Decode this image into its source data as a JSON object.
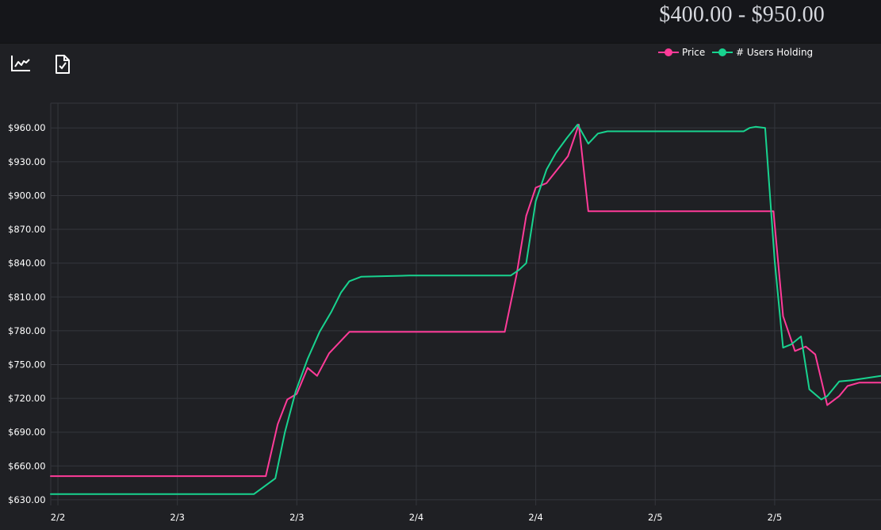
{
  "header": {
    "price_range": "$400.00 - $950.00"
  },
  "toolbar": [
    {
      "name": "chart-line-icon"
    },
    {
      "name": "document-check-icon"
    }
  ],
  "colors": {
    "price": "#ff3b99",
    "users": "#18d38f",
    "grid": "#34363c",
    "background": "#1f2024"
  },
  "chart_data": {
    "type": "line",
    "title": "",
    "xlabel": "",
    "ylabel": "",
    "ylim": [
      625,
      982
    ],
    "xlim": [
      0,
      69.5
    ],
    "grid": true,
    "legend_position": "top-right",
    "y_ticks": [
      "$630.00",
      "$660.00",
      "$690.00",
      "$720.00",
      "$750.00",
      "$780.00",
      "$810.00",
      "$840.00",
      "$870.00",
      "$900.00",
      "$930.00",
      "$960.00"
    ],
    "y_tick_values": [
      630,
      660,
      690,
      720,
      750,
      780,
      810,
      840,
      870,
      900,
      930,
      960
    ],
    "x_ticks": [
      "2/2",
      "2/3",
      "2/3",
      "2/4",
      "2/4",
      "2/5",
      "2/5"
    ],
    "x_tick_positions": [
      0.6,
      10.6,
      20.6,
      30.6,
      40.6,
      50.6,
      60.6
    ],
    "series": [
      {
        "name": "Price",
        "color": "#ff3b99",
        "x": [
          0,
          18,
          19,
          19.8,
          20.6,
          21.5,
          22.3,
          23.3,
          25,
          33,
          38,
          39,
          39.8,
          40.6,
          41.5,
          43.3,
          44.2,
          45,
          60.5,
          61.3,
          62.3,
          63.2,
          64,
          65,
          66,
          66.7,
          67.7,
          69.5
        ],
        "y": [
          651,
          651,
          697,
          719,
          724,
          747,
          740,
          760,
          779,
          779,
          779,
          830,
          882,
          907,
          911,
          935,
          963,
          886,
          886,
          793,
          762,
          766,
          759,
          714,
          722,
          731,
          734,
          734
        ]
      },
      {
        "name": "# Users Holding",
        "color": "#18d38f",
        "x": [
          0,
          17,
          18.8,
          19.6,
          20.5,
          21.5,
          22.5,
          23.5,
          24.3,
          25,
          26,
          30,
          37,
          38.5,
          39.2,
          39.8,
          40.6,
          41.5,
          42.3,
          43.2,
          44.1,
          45,
          45.8,
          46.6,
          50,
          56,
          58,
          58.5,
          59,
          59.8,
          60.6,
          61.3,
          62,
          62.8,
          63.5,
          64.5,
          65,
          66,
          67,
          69.5
        ],
        "y": [
          635,
          635,
          649,
          690,
          726,
          755,
          779,
          797,
          814,
          824,
          828,
          829,
          829,
          829,
          834,
          840,
          895,
          923,
          938,
          951,
          963,
          946,
          955,
          957,
          957,
          957,
          957,
          960,
          961,
          960,
          842,
          765,
          768,
          775,
          728,
          719,
          722,
          735,
          736,
          740
        ]
      }
    ]
  }
}
